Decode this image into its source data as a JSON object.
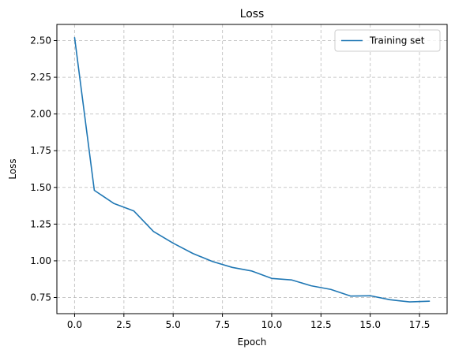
{
  "chart_data": {
    "type": "line",
    "title": "Loss",
    "xlabel": "Epoch",
    "ylabel": "Loss",
    "xlim": [
      -0.9,
      18.9
    ],
    "ylim": [
      0.64,
      2.61
    ],
    "xticks": [
      0.0,
      2.5,
      5.0,
      7.5,
      10.0,
      12.5,
      15.0,
      17.5
    ],
    "xtick_labels": [
      "0.0",
      "2.5",
      "5.0",
      "7.5",
      "10.0",
      "12.5",
      "15.0",
      "17.5"
    ],
    "yticks": [
      0.75,
      1.0,
      1.25,
      1.5,
      1.75,
      2.0,
      2.25,
      2.5
    ],
    "ytick_labels": [
      "0.75",
      "1.00",
      "1.25",
      "1.50",
      "1.75",
      "2.00",
      "2.25",
      "2.50"
    ],
    "grid": true,
    "legend_position": "upper right",
    "series": [
      {
        "name": "Training set",
        "color": "#1f77b4",
        "x": [
          0,
          1,
          2,
          3,
          4,
          5,
          6,
          7,
          8,
          9,
          10,
          11,
          12,
          13,
          14,
          15,
          16,
          17,
          18
        ],
        "y": [
          2.52,
          1.48,
          1.39,
          1.34,
          1.2,
          1.12,
          1.05,
          0.995,
          0.955,
          0.93,
          0.88,
          0.87,
          0.83,
          0.805,
          0.76,
          0.762,
          0.735,
          0.72,
          0.725
        ]
      }
    ]
  }
}
